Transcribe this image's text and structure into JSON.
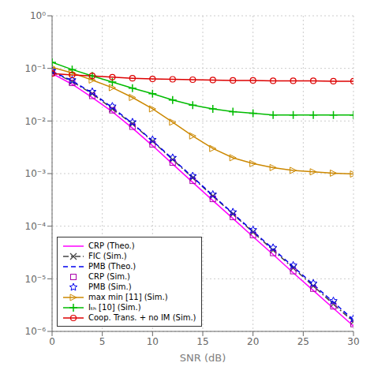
{
  "chart_data": {
    "type": "line",
    "xlabel": "SNR (dB)",
    "x": [
      0,
      2,
      4,
      6,
      8,
      10,
      12,
      14,
      16,
      18,
      20,
      22,
      24,
      26,
      28,
      30
    ],
    "series": [
      {
        "name": "CRP (Theo.)",
        "color": "#ff00ff",
        "line_style": "solid",
        "marker": "none",
        "values": [
          0.08,
          0.05,
          0.028,
          0.015,
          0.0073,
          0.0034,
          0.00152,
          0.00068,
          0.000308,
          0.00014,
          6.3e-05,
          2.9e-05,
          1.3e-05,
          6e-06,
          2.75e-06,
          1.26e-06
        ]
      },
      {
        "name": "FIC (Sim.)",
        "color": "#444444",
        "line_style": "dashdot",
        "marker": "x",
        "values": [
          0.086,
          0.056,
          0.033,
          0.017,
          0.0088,
          0.0041,
          0.00185,
          0.00083,
          0.000375,
          0.00017,
          7.7e-05,
          3.5e-05,
          1.6e-05,
          7.3e-06,
          3.3e-06,
          1.53e-06
        ]
      },
      {
        "name": "PMB (Theo.)",
        "color": "#0000ee",
        "line_style": "dashed",
        "marker": "none",
        "values": [
          0.088,
          0.058,
          0.034,
          0.018,
          0.009,
          0.0042,
          0.0019,
          0.00086,
          0.000385,
          0.000175,
          8e-05,
          3.7e-05,
          1.7e-05,
          7.8e-06,
          3.6e-06,
          1.65e-06
        ]
      },
      {
        "name": "CRP (Sim.)",
        "color": "#aa00aa",
        "line_style": "none",
        "marker": "square",
        "values": [
          0.082,
          0.053,
          0.03,
          0.016,
          0.0078,
          0.0036,
          0.00162,
          0.00073,
          0.00033,
          0.00015,
          6.8e-05,
          3.1e-05,
          1.4e-05,
          6.5e-06,
          3e-06,
          1.38e-06
        ]
      },
      {
        "name": "PMB (Sim.)",
        "color": "#0000ee",
        "line_style": "none",
        "marker": "star",
        "values": [
          0.09,
          0.06,
          0.036,
          0.019,
          0.0095,
          0.0044,
          0.002,
          0.0009,
          0.0004,
          0.000185,
          8.5e-05,
          3.9e-05,
          1.8e-05,
          8.2e-06,
          3.8e-06,
          1.75e-06
        ]
      },
      {
        "name": "max min [11] (Sim.)",
        "color": "#cc8800",
        "line_style": "solid",
        "marker": "triangle_right",
        "values": [
          0.105,
          0.082,
          0.06,
          0.043,
          0.028,
          0.017,
          0.0095,
          0.0052,
          0.003,
          0.002,
          0.00155,
          0.0013,
          0.00115,
          0.00108,
          0.00102,
          0.00098
        ]
      },
      {
        "name": "Iₜₕ [10] (Sim.)",
        "color": "#00bb00",
        "line_style": "solid",
        "marker": "plus",
        "values": [
          0.13,
          0.095,
          0.072,
          0.055,
          0.042,
          0.033,
          0.025,
          0.02,
          0.017,
          0.015,
          0.014,
          0.013,
          0.013,
          0.013,
          0.013,
          0.013
        ]
      },
      {
        "name": "Coop. Trans. + no IM (Sim.)",
        "color": "#dd0000",
        "line_style": "solid",
        "marker": "circle",
        "values": [
          0.08,
          0.075,
          0.072,
          0.068,
          0.065,
          0.063,
          0.062,
          0.061,
          0.06,
          0.059,
          0.059,
          0.058,
          0.058,
          0.058,
          0.057,
          0.057
        ]
      }
    ],
    "xlim": [
      0,
      30
    ],
    "xticks": [
      0,
      5,
      10,
      15,
      20,
      25,
      30
    ],
    "ylim": [
      1e-06,
      1
    ],
    "yticks": [
      {
        "value": 1e-06,
        "label": "10⁻⁶"
      },
      {
        "value": 1e-05,
        "label": "10⁻⁵"
      },
      {
        "value": 0.0001,
        "label": "10⁻⁴"
      },
      {
        "value": 0.001,
        "label": "10⁻³"
      },
      {
        "value": 0.01,
        "label": "10⁻²"
      },
      {
        "value": 0.1,
        "label": "10⁻¹"
      },
      {
        "value": 1,
        "label": "10⁰"
      }
    ],
    "log": "y",
    "grid": true,
    "legend": "lower left"
  }
}
